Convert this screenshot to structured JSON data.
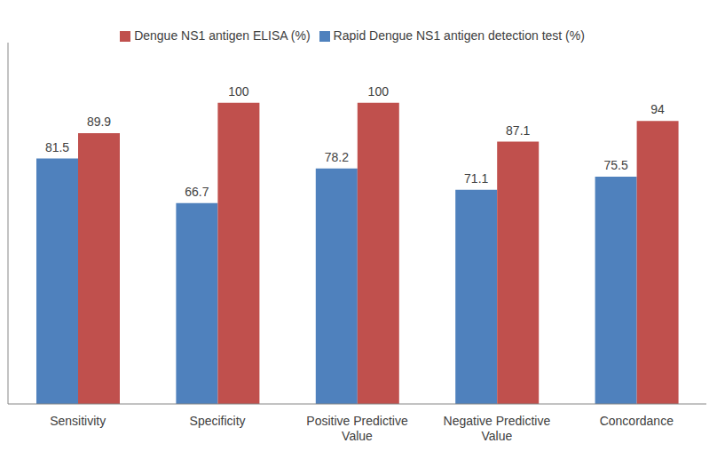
{
  "chart_data": {
    "type": "bar",
    "categories": [
      "Sensitivity",
      "Specificity",
      "Positive Predictive Value",
      "Negative Predictive Value",
      "Concordance"
    ],
    "series": [
      {
        "name": "Rapid Dengue NS1 antigen detection test (%)",
        "color": "#4f81bd",
        "values": [
          81.5,
          66.7,
          78.2,
          71.1,
          75.5
        ]
      },
      {
        "name": "Dengue NS1 antigen ELISA (%)",
        "color": "#c0504d",
        "values": [
          89.9,
          100,
          100,
          87.1,
          94
        ]
      }
    ],
    "ylim": [
      0,
      120
    ],
    "grid": false,
    "legend": "top",
    "data_labels": true,
    "tick_labels": "x"
  }
}
